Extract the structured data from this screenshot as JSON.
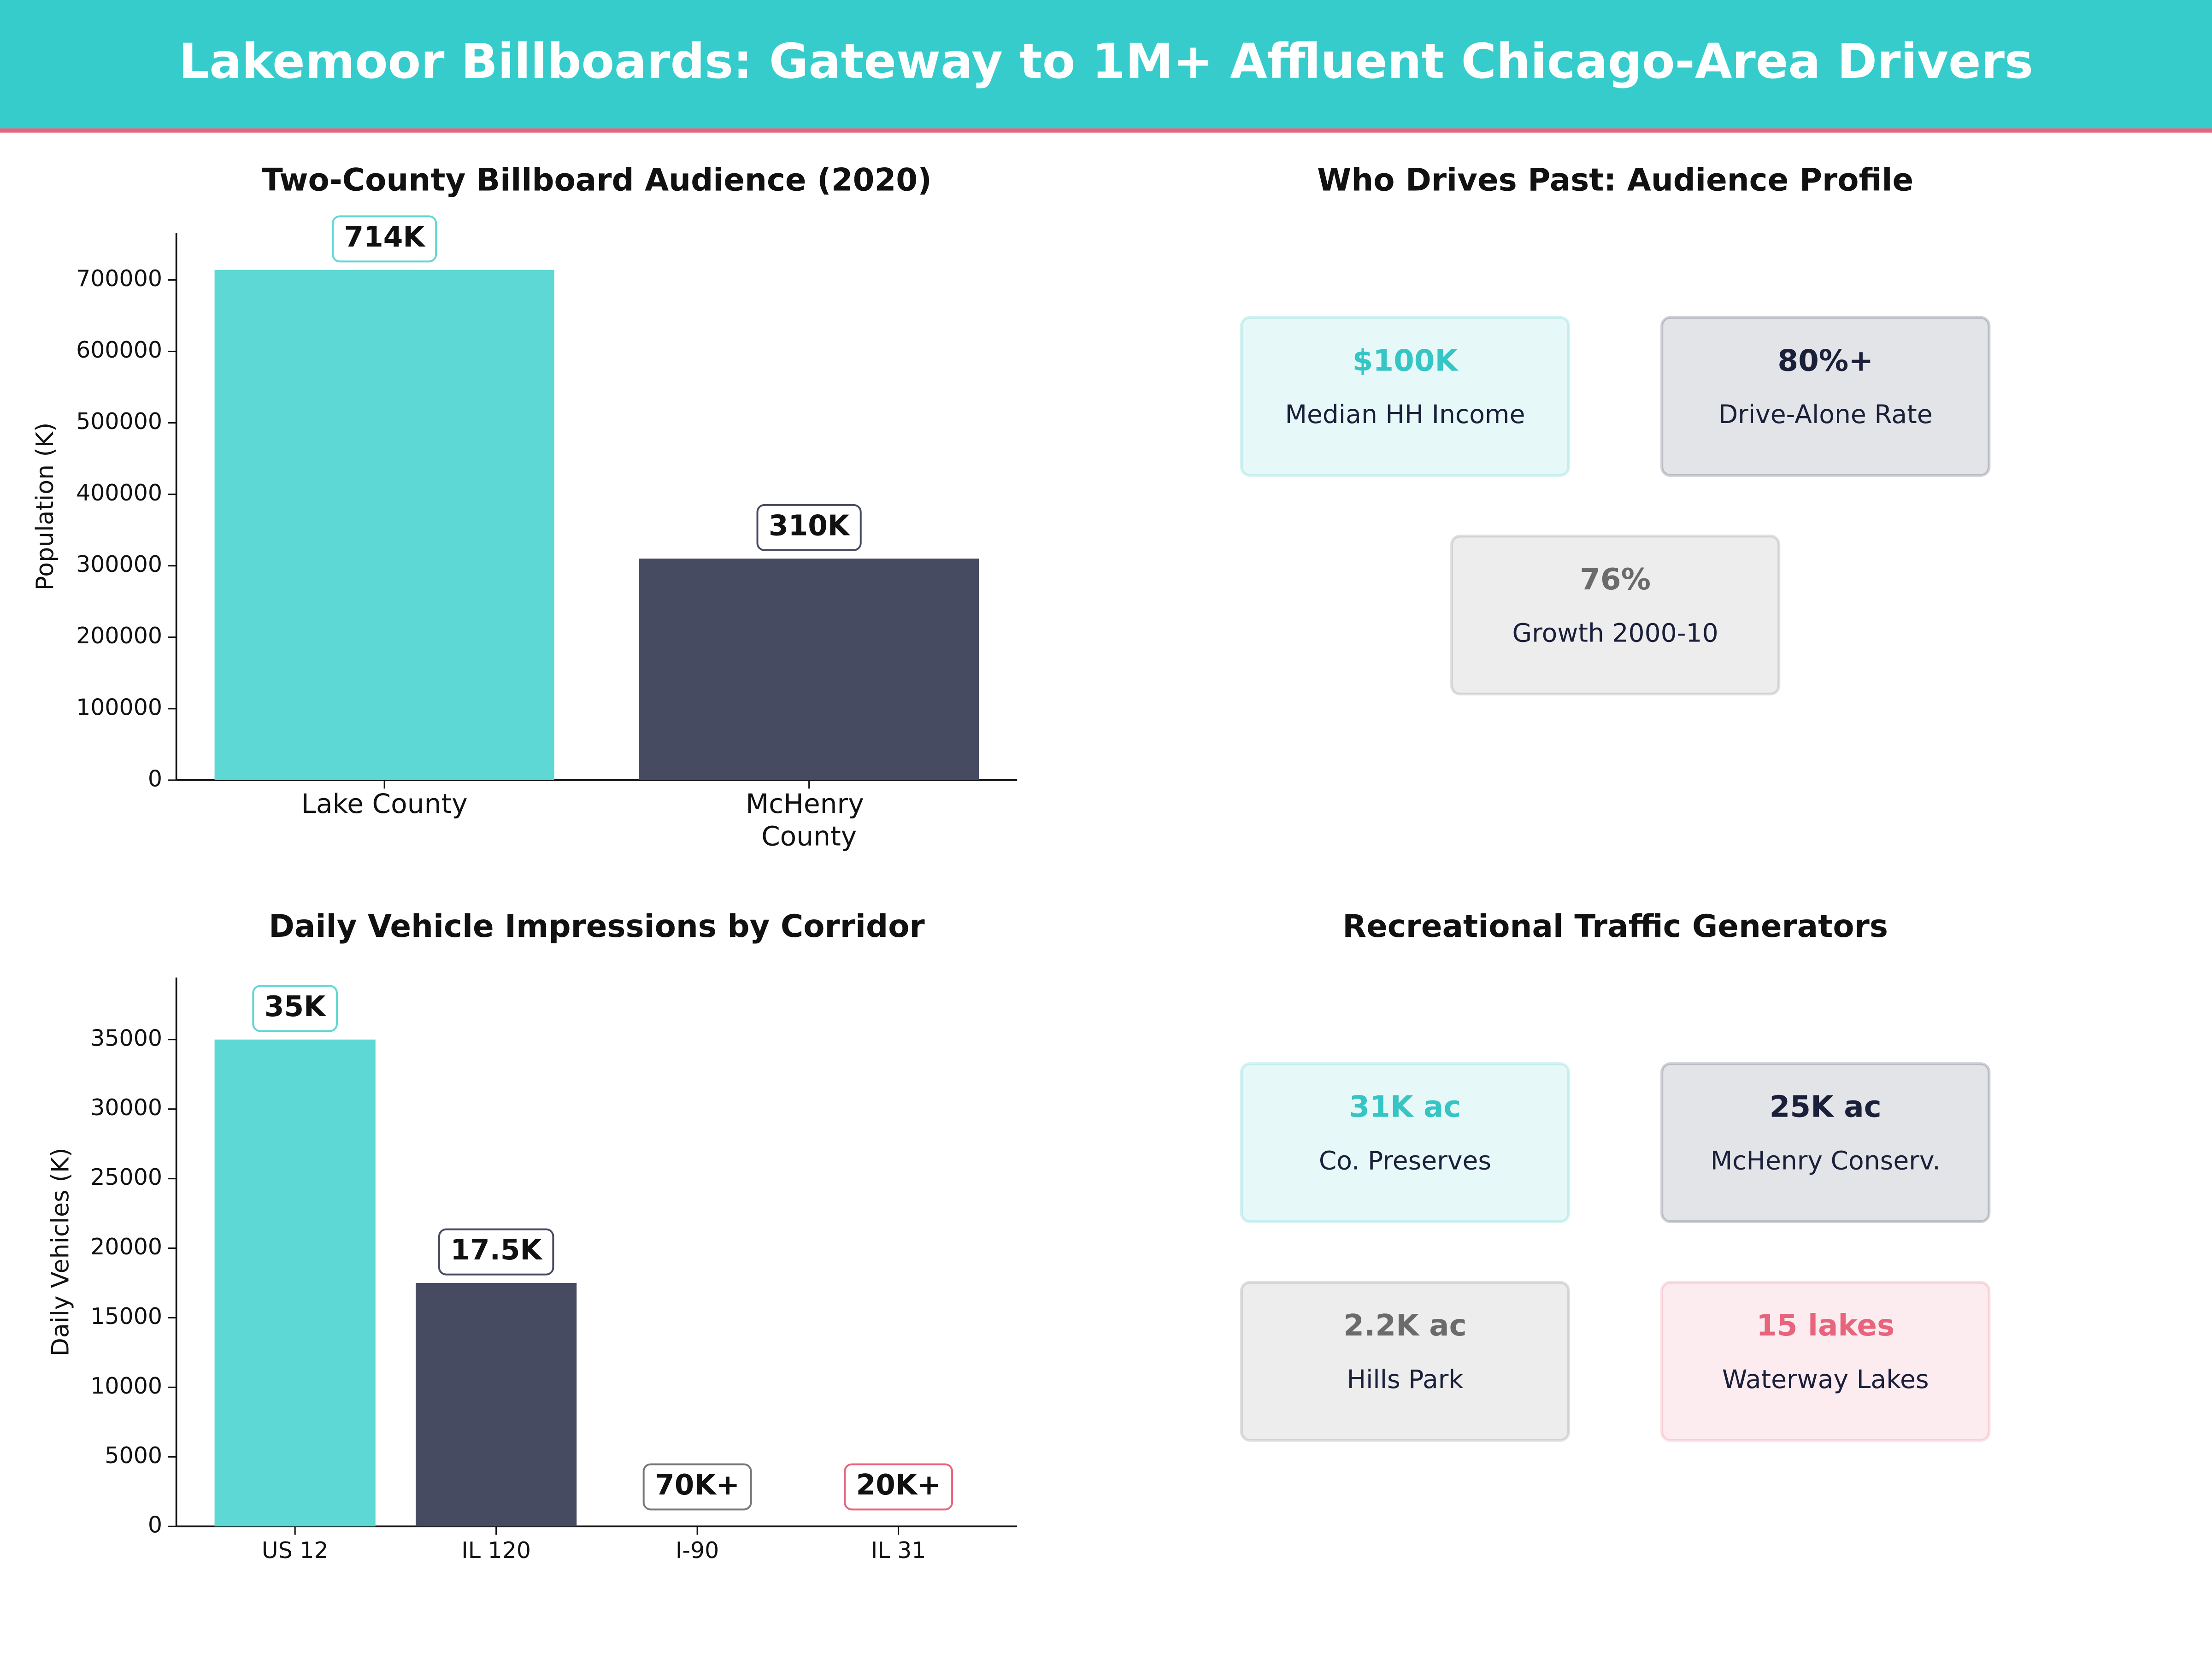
{
  "header": {
    "title": "Lakemoor Billboards: Gateway to 1M+ Affluent Chicago-Area Drivers"
  },
  "chart_data": [
    {
      "type": "bar",
      "title": "Two-County Billboard Audience (2020)",
      "y_label": "Population (K)",
      "categories": [
        "Lake County",
        "McHenry County"
      ],
      "values": [
        714000,
        310000
      ],
      "value_labels": [
        "714K",
        "310K"
      ],
      "colors": [
        "#5dd8d4",
        "#474b61"
      ],
      "ylim": [
        0,
        766000
      ],
      "yticks": [
        0,
        100000,
        200000,
        300000,
        400000,
        500000,
        600000,
        700000
      ]
    },
    {
      "type": "bar",
      "title": "Daily Vehicle Impressions by Corridor",
      "y_label": "Daily Vehicles (K)",
      "categories": [
        "US 12",
        "IL 120",
        "I-90",
        "IL 31"
      ],
      "values": [
        35000,
        17500,
        null,
        null
      ],
      "value_labels": [
        "35K",
        "17.5K",
        "70K+",
        "20K+"
      ],
      "colors": [
        "#5dd8d4",
        "#474b61",
        "#777777",
        "#e8647c"
      ],
      "ylim": [
        0,
        39450
      ],
      "yticks": [
        0,
        5000,
        10000,
        15000,
        20000,
        25000,
        30000,
        35000
      ]
    }
  ],
  "panels": [
    {
      "title": "Who Drives Past: Audience Profile",
      "cards": [
        {
          "value": "$100K",
          "label": "Median HH Income",
          "color": "#36c5c5"
        },
        {
          "value": "80%+",
          "label": "Drive-Alone Rate",
          "color": "#1a1f3a"
        },
        {
          "value": "76%",
          "label": "Growth 2000-10",
          "color": "#6b6b6b"
        }
      ]
    },
    {
      "title": "Recreational Traffic Generators",
      "cards": [
        {
          "value": "31K ac",
          "label": "Co. Preserves",
          "color": "#36c5c5"
        },
        {
          "value": "25K ac",
          "label": "McHenry Conserv.",
          "color": "#1a1f3a"
        },
        {
          "value": "2.2K ac",
          "label": "Hills Park",
          "color": "#6b6b6b"
        },
        {
          "value": "15 lakes",
          "label": "Waterway Lakes",
          "color": "#e8647c"
        }
      ]
    }
  ]
}
